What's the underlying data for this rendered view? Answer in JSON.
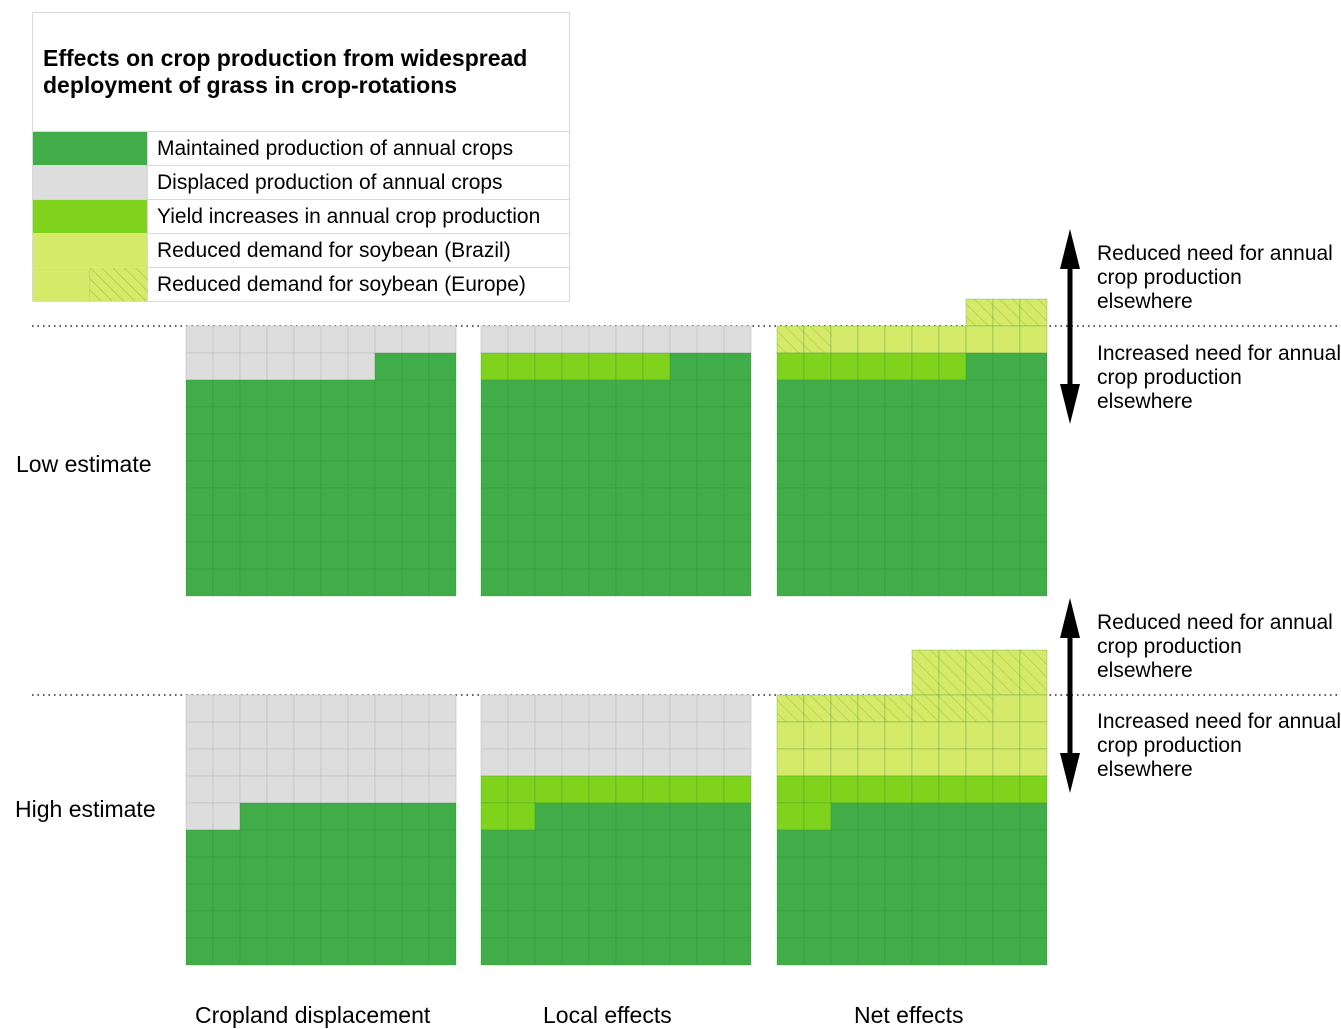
{
  "colors": {
    "maintained": "#41ad49",
    "displaced": "#dddddd",
    "yield": "#80d31d",
    "soy_brazil": "#d6ea6a",
    "soy_europe": "#d6ea6a",
    "hatch": "#b4c846",
    "cell_line_green": "#2f8a37",
    "cell_line_grey": "#bdbdbd"
  },
  "legend": {
    "title": "Effects on crop production from widespread deployment of grass in crop-rotations",
    "items": [
      {
        "key": "maintained",
        "label": "Maintained production of annual crops"
      },
      {
        "key": "displaced",
        "label": "Displaced production of annual crops"
      },
      {
        "key": "yield",
        "label": "Yield increases in annual crop production"
      },
      {
        "key": "soy_brazil",
        "label": "Reduced demand for soybean (Brazil)"
      },
      {
        "key": "soy_europe",
        "label": "Reduced demand for soybean (Europe)"
      }
    ]
  },
  "annotations": {
    "up": "Reduced need for annual crop production elsewhere",
    "down": "Increased need for annual crop production elsewhere"
  },
  "chart_data": {
    "type": "table",
    "grid": {
      "columns": 10,
      "rows": 10
    },
    "row_labels": [
      "Low estimate",
      "High estimate"
    ],
    "column_labels": [
      "Cropland displacement",
      "Local effects",
      "Net effects"
    ],
    "panels": [
      {
        "row": "Low estimate",
        "column": "Cropland displacement",
        "units_above_line": 0,
        "cells_by_row": [
          [
            "displaced",
            "displaced",
            "displaced",
            "displaced",
            "displaced",
            "displaced",
            "displaced",
            "displaced",
            "displaced",
            "displaced"
          ],
          [
            "displaced",
            "displaced",
            "displaced",
            "displaced",
            "displaced",
            "displaced",
            "displaced",
            "maintained",
            "maintained",
            "maintained"
          ]
        ]
      },
      {
        "row": "Low estimate",
        "column": "Local effects",
        "units_above_line": 0,
        "cells_by_row": [
          [
            "displaced",
            "displaced",
            "displaced",
            "displaced",
            "displaced",
            "displaced",
            "displaced",
            "displaced",
            "displaced",
            "displaced"
          ],
          [
            "yield",
            "yield",
            "yield",
            "yield",
            "yield",
            "yield",
            "yield",
            "maintained",
            "maintained",
            "maintained"
          ]
        ]
      },
      {
        "row": "Low estimate",
        "column": "Net effects",
        "units_above_line": 3,
        "cells_above_line": [
          "empty",
          "empty",
          "empty",
          "empty",
          "empty",
          "empty",
          "empty",
          "soy_europe",
          "soy_europe",
          "soy_europe"
        ],
        "cells_by_row": [
          [
            "soy_europe",
            "soy_europe",
            "soy_brazil",
            "soy_brazil",
            "soy_brazil",
            "soy_brazil",
            "soy_brazil",
            "soy_brazil",
            "soy_brazil",
            "soy_brazil"
          ],
          [
            "yield",
            "yield",
            "yield",
            "yield",
            "yield",
            "yield",
            "yield",
            "maintained",
            "maintained",
            "maintained"
          ]
        ]
      },
      {
        "row": "High estimate",
        "column": "Cropland displacement",
        "units_above_line": 0,
        "cells_by_row": [
          [
            "displaced",
            "displaced",
            "displaced",
            "displaced",
            "displaced",
            "displaced",
            "displaced",
            "displaced",
            "displaced",
            "displaced"
          ],
          [
            "displaced",
            "displaced",
            "displaced",
            "displaced",
            "displaced",
            "displaced",
            "displaced",
            "displaced",
            "displaced",
            "displaced"
          ],
          [
            "displaced",
            "displaced",
            "displaced",
            "displaced",
            "displaced",
            "displaced",
            "displaced",
            "displaced",
            "displaced",
            "displaced"
          ],
          [
            "displaced",
            "displaced",
            "displaced",
            "displaced",
            "displaced",
            "displaced",
            "displaced",
            "displaced",
            "displaced",
            "displaced"
          ],
          [
            "displaced",
            "displaced",
            "maintained",
            "maintained",
            "maintained",
            "maintained",
            "maintained",
            "maintained",
            "maintained",
            "maintained"
          ]
        ]
      },
      {
        "row": "High estimate",
        "column": "Local effects",
        "units_above_line": 0,
        "cells_by_row": [
          [
            "displaced",
            "displaced",
            "displaced",
            "displaced",
            "displaced",
            "displaced",
            "displaced",
            "displaced",
            "displaced",
            "displaced"
          ],
          [
            "displaced",
            "displaced",
            "displaced",
            "displaced",
            "displaced",
            "displaced",
            "displaced",
            "displaced",
            "displaced",
            "displaced"
          ],
          [
            "displaced",
            "displaced",
            "displaced",
            "displaced",
            "displaced",
            "displaced",
            "displaced",
            "displaced",
            "displaced",
            "displaced"
          ],
          [
            "yield",
            "yield",
            "yield",
            "yield",
            "yield",
            "yield",
            "yield",
            "yield",
            "yield",
            "yield"
          ],
          [
            "yield",
            "yield",
            "maintained",
            "maintained",
            "maintained",
            "maintained",
            "maintained",
            "maintained",
            "maintained",
            "maintained"
          ]
        ]
      },
      {
        "row": "High estimate",
        "column": "Net effects",
        "units_above_line": 5,
        "cells_above_line": [
          "empty",
          "empty",
          "empty",
          "empty",
          "empty",
          "soy_europe",
          "soy_europe",
          "soy_europe",
          "soy_europe",
          "soy_europe"
        ],
        "cells_by_row": [
          [
            "soy_europe",
            "soy_europe",
            "soy_europe",
            "soy_europe",
            "soy_europe",
            "soy_europe",
            "soy_europe",
            "soy_europe",
            "soy_brazil",
            "soy_brazil"
          ],
          [
            "soy_brazil",
            "soy_brazil",
            "soy_brazil",
            "soy_brazil",
            "soy_brazil",
            "soy_brazil",
            "soy_brazil",
            "soy_brazil",
            "soy_brazil",
            "soy_brazil"
          ],
          [
            "soy_brazil",
            "soy_brazil",
            "soy_brazil",
            "soy_brazil",
            "soy_brazil",
            "soy_brazil",
            "soy_brazil",
            "soy_brazil",
            "soy_brazil",
            "soy_brazil"
          ],
          [
            "yield",
            "yield",
            "yield",
            "yield",
            "yield",
            "yield",
            "yield",
            "yield",
            "yield",
            "yield"
          ],
          [
            "yield",
            "yield",
            "maintained",
            "maintained",
            "maintained",
            "maintained",
            "maintained",
            "maintained",
            "maintained",
            "maintained"
          ]
        ]
      }
    ]
  }
}
